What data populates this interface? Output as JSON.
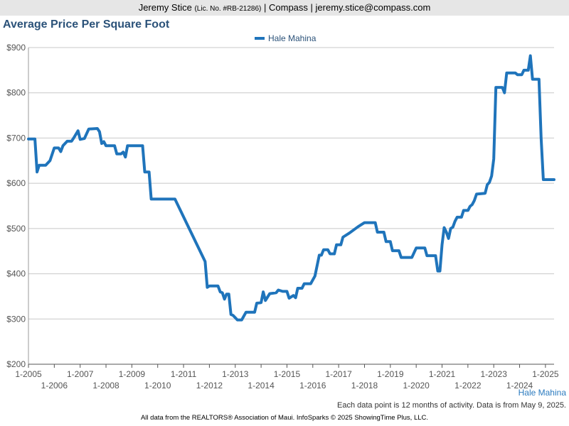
{
  "header": {
    "name": "Jeremy Stice",
    "license": "(Lic. No. #RB-21286)",
    "rest": "| Compass | jeremy.stice@compass.com"
  },
  "footer": {
    "note": "Each data point is 12 months of activity. Data is from May 9, 2025.",
    "source": "All data from the REALTORS® Association of Maui. InfoSparks © 2025 ShowingTime Plus, LLC."
  },
  "colors": {
    "series": "#1f74bb",
    "grid": "#c8c8c8",
    "title": "#2b5279"
  },
  "chart_data": {
    "type": "line",
    "title": "Average Price Per Square Foot",
    "xlabel": "",
    "ylabel": "",
    "xlim": [
      "2005-01",
      "2025-05"
    ],
    "ylim": [
      200,
      900
    ],
    "y_ticks": [
      200,
      300,
      400,
      500,
      600,
      700,
      800,
      900
    ],
    "y_tick_labels": [
      "$200",
      "$300",
      "$400",
      "$500",
      "$600",
      "$700",
      "$800",
      "$900"
    ],
    "x_ticks": [
      "2005-01",
      "2006-01",
      "2007-01",
      "2008-01",
      "2009-01",
      "2010-01",
      "2011-01",
      "2012-01",
      "2013-01",
      "2014-01",
      "2015-01",
      "2016-01",
      "2017-01",
      "2018-01",
      "2019-01",
      "2020-01",
      "2021-01",
      "2022-01",
      "2023-01",
      "2024-01",
      "2025-01"
    ],
    "x_tick_labels": [
      "1-2005",
      "1-2006",
      "1-2007",
      "1-2008",
      "1-2009",
      "1-2010",
      "1-2011",
      "1-2012",
      "1-2013",
      "1-2014",
      "1-2015",
      "1-2016",
      "1-2017",
      "1-2018",
      "1-2019",
      "1-2020",
      "1-2021",
      "1-2022",
      "1-2023",
      "1-2024",
      "1-2025"
    ],
    "grid": true,
    "legend_position": "top-center",
    "x_axis_caption": "Hale Mahina",
    "series": [
      {
        "name": "Hale Mahina",
        "color": "#1f74bb",
        "points": [
          [
            "2005-01",
            698
          ],
          [
            "2005-04",
            698
          ],
          [
            "2005-05",
            625
          ],
          [
            "2005-06",
            640
          ],
          [
            "2005-09",
            640
          ],
          [
            "2005-11",
            650
          ],
          [
            "2006-01",
            678
          ],
          [
            "2006-03",
            678
          ],
          [
            "2006-04",
            670
          ],
          [
            "2006-05",
            683
          ],
          [
            "2006-07",
            693
          ],
          [
            "2006-09",
            693
          ],
          [
            "2006-10",
            700
          ],
          [
            "2006-12",
            716
          ],
          [
            "2007-01",
            697
          ],
          [
            "2007-03",
            699
          ],
          [
            "2007-05",
            720
          ],
          [
            "2007-09",
            721
          ],
          [
            "2007-10",
            714
          ],
          [
            "2007-11",
            688
          ],
          [
            "2007-12",
            692
          ],
          [
            "2008-01",
            683
          ],
          [
            "2008-05",
            683
          ],
          [
            "2008-06",
            665
          ],
          [
            "2008-08",
            665
          ],
          [
            "2008-09",
            669
          ],
          [
            "2008-10",
            658
          ],
          [
            "2008-11",
            683
          ],
          [
            "2009-06",
            683
          ],
          [
            "2009-07",
            625
          ],
          [
            "2009-09",
            625
          ],
          [
            "2009-10",
            565
          ],
          [
            "2010-09",
            565
          ],
          [
            "2011-11",
            427
          ],
          [
            "2011-12",
            370
          ],
          [
            "2012-01",
            373
          ],
          [
            "2012-05",
            373
          ],
          [
            "2012-06",
            360
          ],
          [
            "2012-07",
            358
          ],
          [
            "2012-08",
            344
          ],
          [
            "2012-09",
            355
          ],
          [
            "2012-10",
            355
          ],
          [
            "2012-11",
            310
          ],
          [
            "2012-12",
            308
          ],
          [
            "2013-02",
            298
          ],
          [
            "2013-04",
            298
          ],
          [
            "2013-06",
            315
          ],
          [
            "2013-10",
            315
          ],
          [
            "2013-11",
            335
          ],
          [
            "2014-01",
            336
          ],
          [
            "2014-02",
            360
          ],
          [
            "2014-03",
            341
          ],
          [
            "2014-05",
            356
          ],
          [
            "2014-08",
            358
          ],
          [
            "2014-09",
            364
          ],
          [
            "2014-11",
            361
          ],
          [
            "2015-01",
            361
          ],
          [
            "2015-02",
            346
          ],
          [
            "2015-04",
            352
          ],
          [
            "2015-05",
            347
          ],
          [
            "2015-06",
            368
          ],
          [
            "2015-08",
            368
          ],
          [
            "2015-09",
            378
          ],
          [
            "2015-12",
            378
          ],
          [
            "2016-02",
            395
          ],
          [
            "2016-04",
            441
          ],
          [
            "2016-05",
            441
          ],
          [
            "2016-06",
            453
          ],
          [
            "2016-08",
            453
          ],
          [
            "2016-09",
            444
          ],
          [
            "2016-11",
            444
          ],
          [
            "2016-12",
            464
          ],
          [
            "2017-02",
            464
          ],
          [
            "2017-03",
            481
          ],
          [
            "2017-06",
            490
          ],
          [
            "2017-10",
            504
          ],
          [
            "2018-01",
            513
          ],
          [
            "2018-06",
            513
          ],
          [
            "2018-07",
            492
          ],
          [
            "2018-10",
            492
          ],
          [
            "2018-11",
            471
          ],
          [
            "2019-01",
            471
          ],
          [
            "2019-02",
            451
          ],
          [
            "2019-05",
            451
          ],
          [
            "2019-06",
            436
          ],
          [
            "2019-11",
            436
          ],
          [
            "2020-01",
            457
          ],
          [
            "2020-05",
            457
          ],
          [
            "2020-06",
            440
          ],
          [
            "2020-10",
            440
          ],
          [
            "2020-11",
            406
          ],
          [
            "2020-12",
            406
          ],
          [
            "2021-01",
            464
          ],
          [
            "2021-02",
            502
          ],
          [
            "2021-03",
            492
          ],
          [
            "2021-04",
            478
          ],
          [
            "2021-05",
            500
          ],
          [
            "2021-06",
            503
          ],
          [
            "2021-07",
            516
          ],
          [
            "2021-08",
            525
          ],
          [
            "2021-10",
            525
          ],
          [
            "2021-11",
            540
          ],
          [
            "2022-01",
            540
          ],
          [
            "2022-02",
            549
          ],
          [
            "2022-03",
            553
          ],
          [
            "2022-04",
            562
          ],
          [
            "2022-05",
            576
          ],
          [
            "2022-09",
            578
          ],
          [
            "2022-10",
            597
          ],
          [
            "2022-11",
            602
          ],
          [
            "2022-12",
            616
          ],
          [
            "2023-01",
            654
          ],
          [
            "2023-02",
            812
          ],
          [
            "2023-05",
            812
          ],
          [
            "2023-06",
            800
          ],
          [
            "2023-07",
            844
          ],
          [
            "2023-11",
            844
          ],
          [
            "2023-12",
            840
          ],
          [
            "2024-02",
            840
          ],
          [
            "2024-03",
            850
          ],
          [
            "2024-05",
            850
          ],
          [
            "2024-06",
            882
          ],
          [
            "2024-07",
            830
          ],
          [
            "2024-10",
            830
          ],
          [
            "2024-11",
            700
          ],
          [
            "2024-12",
            608
          ],
          [
            "2025-05",
            608
          ]
        ]
      }
    ]
  }
}
